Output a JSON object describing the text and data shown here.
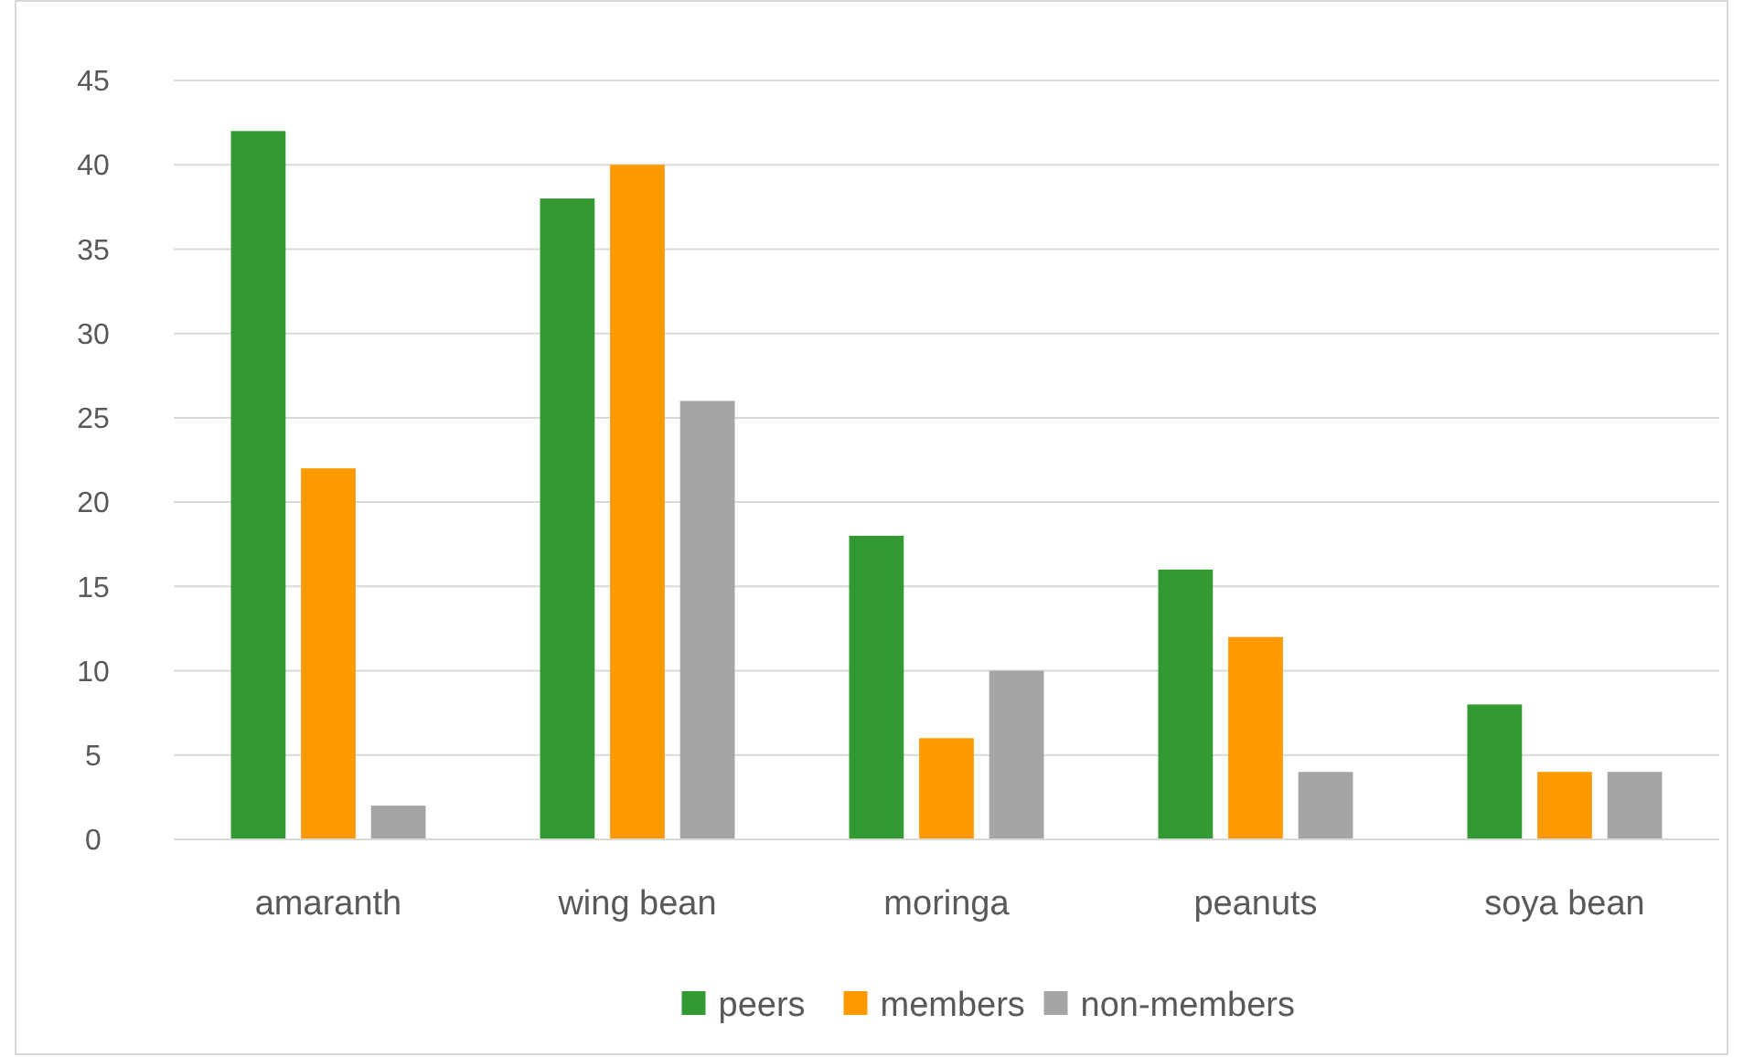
{
  "chart_data": {
    "type": "bar",
    "categories": [
      "amaranth",
      "wing bean",
      "moringa",
      "peanuts",
      "soya bean"
    ],
    "series": [
      {
        "name": "peers",
        "color": "#339933",
        "values": [
          42,
          38,
          18,
          16,
          8
        ]
      },
      {
        "name": "members",
        "color": "#ff9900",
        "values": [
          22,
          40,
          6,
          12,
          4
        ]
      },
      {
        "name": "non-members",
        "color": "#a5a5a5",
        "values": [
          2,
          26,
          10,
          4,
          4
        ]
      }
    ],
    "ylim": [
      0,
      45
    ],
    "yticks": [
      0,
      5,
      10,
      15,
      20,
      25,
      30,
      35,
      40,
      45
    ],
    "grid": "y",
    "legend": "bottom"
  }
}
